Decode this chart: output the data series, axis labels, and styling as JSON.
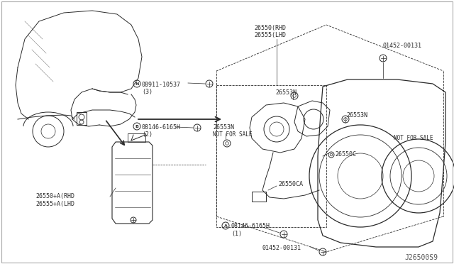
{
  "bg_color": "#ffffff",
  "line_color": "#2a2a2a",
  "fig_width": 6.4,
  "fig_height": 3.72,
  "dpi": 100,
  "watermark": "J26500S9",
  "labels": {
    "26550_RHD": "26550(RHD",
    "26555_LHD": "26555(LHD",
    "08911": "08911-10537",
    "08911_sub": "(3)",
    "26553N_left": "26553N",
    "not_for_sale_left": "NOT FOR SALE",
    "26553N_mid": "26553N",
    "26553N_right": "26553N",
    "08146_top": "08146-6165H",
    "08146_top_sub": "(2)",
    "26550C": "26550C",
    "26550CA": "26550CA",
    "not_for_sale_right": "NOT FOR SALE",
    "01452_top": "01452-00131",
    "26550A_RHD": "26550+A(RHD",
    "26555A_LHD": "26555+A(LHD",
    "08146_bot": "08146-6165H",
    "08146_bot_sub": "(1)",
    "01452_bot": "01452-00131"
  }
}
